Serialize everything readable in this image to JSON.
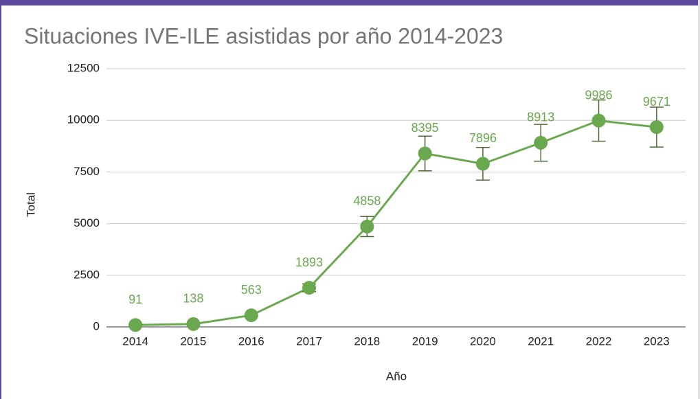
{
  "chart_data": {
    "type": "line",
    "title": "Situaciones IVE-ILE asistidas por año 2014-2023",
    "xlabel": "Año",
    "ylabel": "Total",
    "categories": [
      "2014",
      "2015",
      "2016",
      "2017",
      "2018",
      "2019",
      "2020",
      "2021",
      "2022",
      "2023"
    ],
    "values": [
      91,
      138,
      563,
      1893,
      4858,
      8395,
      7896,
      8913,
      9986,
      9671
    ],
    "errors": [
      9.1,
      13.8,
      56.3,
      189.3,
      485.8,
      839.5,
      789.6,
      891.3,
      998.6,
      967.1
    ],
    "color": "#6aa84f",
    "error_color": "#4d6b35",
    "ylim": [
      0,
      12500
    ],
    "yticks": [
      0,
      2500,
      5000,
      7500,
      10000,
      12500
    ],
    "grid": true
  }
}
